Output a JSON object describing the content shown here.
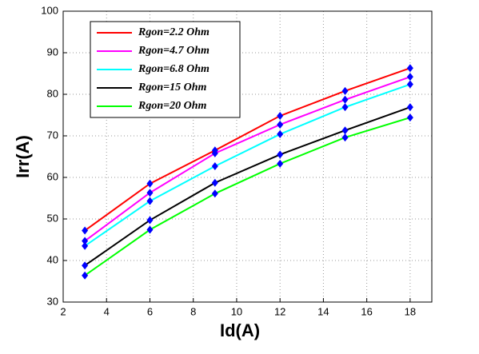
{
  "chart_data": {
    "type": "line",
    "x_label": "Id(A)",
    "y_label": "Irr(A)",
    "x": [
      3,
      6,
      9,
      12,
      15,
      18
    ],
    "series": [
      {
        "name": "Rgon=2.2 Ohm",
        "color": "#ff0000",
        "values": [
          47.2,
          58.5,
          66.5,
          74.8,
          80.8,
          86.3
        ]
      },
      {
        "name": "Rgon=4.7 Ohm",
        "color": "#ff00ff",
        "values": [
          44.7,
          56.3,
          65.8,
          72.7,
          78.7,
          84.2
        ]
      },
      {
        "name": "Rgon=6.8 Ohm",
        "color": "#00ffff",
        "values": [
          43.5,
          54.3,
          62.7,
          70.4,
          76.9,
          82.4
        ]
      },
      {
        "name": "Rgon=15 Ohm",
        "color": "#000000",
        "values": [
          38.8,
          49.7,
          58.7,
          65.5,
          71.3,
          76.9
        ]
      },
      {
        "name": "Rgon=20 Ohm",
        "color": "#00ff00",
        "values": [
          36.4,
          47.4,
          56.1,
          63.3,
          69.6,
          74.4
        ]
      }
    ],
    "marker_color": "#0000ff",
    "xlim": [
      2,
      19
    ],
    "xticks": [
      2,
      4,
      6,
      8,
      10,
      12,
      14,
      16,
      18
    ],
    "ylim": [
      30,
      100
    ],
    "yticks": [
      30,
      40,
      50,
      60,
      70,
      80,
      90,
      100
    ],
    "grid": true,
    "legend": "top-left"
  }
}
